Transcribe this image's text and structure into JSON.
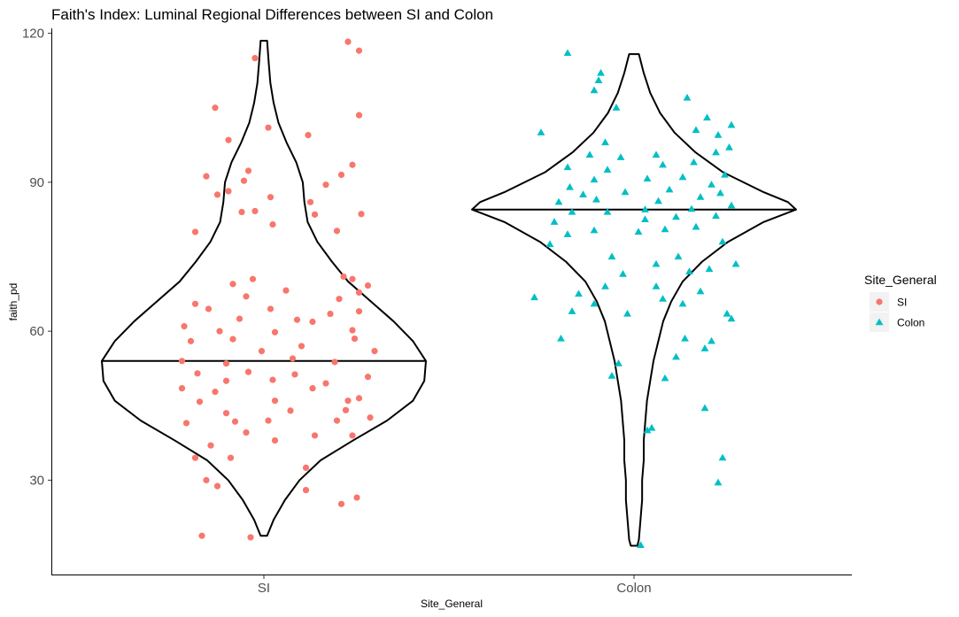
{
  "chart_data": {
    "type": "scatter",
    "subtype": "violin-with-jitter",
    "title": "Faith's Index: Luminal Regional Differences between SI and Colon",
    "xlabel": "Site_General",
    "ylabel": "faith_pd",
    "categories": [
      "SI",
      "Colon"
    ],
    "ylim": [
      11,
      121
    ],
    "yticks": [
      30,
      60,
      90,
      120
    ],
    "grid": false,
    "legend": {
      "title": "Site_General",
      "position": "right",
      "entries": [
        {
          "label": "SI",
          "shape": "circle",
          "color": "#F8766D"
        },
        {
          "label": "Colon",
          "shape": "triangle",
          "color": "#00BFC4"
        }
      ]
    },
    "violins": [
      {
        "category": "SI",
        "median": 54,
        "min": 18.8,
        "max": 118.5,
        "profile": [
          [
            18.8,
            0.02
          ],
          [
            22,
            0.06
          ],
          [
            26,
            0.13
          ],
          [
            30,
            0.22
          ],
          [
            34,
            0.35
          ],
          [
            38,
            0.55
          ],
          [
            42,
            0.76
          ],
          [
            46,
            0.92
          ],
          [
            50,
            0.99
          ],
          [
            54,
            1.0
          ],
          [
            58,
            0.92
          ],
          [
            62,
            0.8
          ],
          [
            66,
            0.66
          ],
          [
            70,
            0.52
          ],
          [
            74,
            0.42
          ],
          [
            78,
            0.33
          ],
          [
            82,
            0.27
          ],
          [
            86,
            0.25
          ],
          [
            90,
            0.24
          ],
          [
            94,
            0.2
          ],
          [
            98,
            0.14
          ],
          [
            102,
            0.09
          ],
          [
            106,
            0.06
          ],
          [
            110,
            0.04
          ],
          [
            114,
            0.03
          ],
          [
            118.5,
            0.02
          ]
        ]
      },
      {
        "category": "Colon",
        "median": 84.5,
        "min": 16.8,
        "max": 115.8,
        "profile": [
          [
            16.8,
            0.02
          ],
          [
            18,
            0.03
          ],
          [
            22,
            0.04
          ],
          [
            26,
            0.05
          ],
          [
            30,
            0.05
          ],
          [
            34,
            0.06
          ],
          [
            38,
            0.06
          ],
          [
            42,
            0.07
          ],
          [
            46,
            0.08
          ],
          [
            50,
            0.1
          ],
          [
            54,
            0.12
          ],
          [
            58,
            0.15
          ],
          [
            62,
            0.18
          ],
          [
            66,
            0.23
          ],
          [
            70,
            0.3
          ],
          [
            74,
            0.42
          ],
          [
            78,
            0.58
          ],
          [
            82,
            0.8
          ],
          [
            84.5,
            1.0
          ],
          [
            86,
            0.95
          ],
          [
            88,
            0.8
          ],
          [
            92,
            0.55
          ],
          [
            96,
            0.38
          ],
          [
            100,
            0.25
          ],
          [
            104,
            0.16
          ],
          [
            108,
            0.1
          ],
          [
            112,
            0.06
          ],
          [
            115.8,
            0.03
          ]
        ]
      }
    ],
    "series": [
      {
        "name": "SI",
        "points": [
          [
            -0.28,
            18.8
          ],
          [
            -0.06,
            18.5
          ],
          [
            0.35,
            25.2
          ],
          [
            0.42,
            26.5
          ],
          [
            0.19,
            28
          ],
          [
            -0.21,
            28.8
          ],
          [
            -0.26,
            30
          ],
          [
            0.19,
            32.5
          ],
          [
            -0.31,
            34.5
          ],
          [
            -0.15,
            34.5
          ],
          [
            -0.24,
            37
          ],
          [
            0.05,
            38
          ],
          [
            0.23,
            39
          ],
          [
            -0.08,
            39.6
          ],
          [
            0.4,
            39
          ],
          [
            -0.35,
            41.5
          ],
          [
            -0.13,
            41.8
          ],
          [
            0.02,
            42
          ],
          [
            0.33,
            42
          ],
          [
            0.48,
            42.6
          ],
          [
            -0.17,
            43.5
          ],
          [
            0.12,
            44
          ],
          [
            0.37,
            44.1
          ],
          [
            -0.29,
            45.8
          ],
          [
            0.05,
            46
          ],
          [
            0.38,
            46
          ],
          [
            0.43,
            46.5
          ],
          [
            -0.22,
            47.8
          ],
          [
            0.22,
            48.5
          ],
          [
            -0.37,
            48.5
          ],
          [
            0.28,
            49.5
          ],
          [
            -0.17,
            50
          ],
          [
            0.04,
            50.2
          ],
          [
            0.47,
            50.8
          ],
          [
            -0.3,
            51.5
          ],
          [
            0.14,
            51.3
          ],
          [
            -0.07,
            51.8
          ],
          [
            -0.17,
            53.5
          ],
          [
            0.32,
            53.8
          ],
          [
            -0.37,
            54
          ],
          [
            0.13,
            54.5
          ],
          [
            -0.01,
            56
          ],
          [
            0.17,
            57
          ],
          [
            -0.33,
            58
          ],
          [
            0.5,
            56
          ],
          [
            0.41,
            58.5
          ],
          [
            -0.14,
            58.4
          ],
          [
            0.05,
            59.8
          ],
          [
            -0.2,
            60
          ],
          [
            0.4,
            60.2
          ],
          [
            -0.36,
            61
          ],
          [
            0.22,
            61.9
          ],
          [
            0.15,
            62.3
          ],
          [
            -0.11,
            62.5
          ],
          [
            0.3,
            63.5
          ],
          [
            0.43,
            64
          ],
          [
            -0.25,
            64.5
          ],
          [
            0.03,
            64.5
          ],
          [
            -0.31,
            65.5
          ],
          [
            0.34,
            66.5
          ],
          [
            -0.08,
            67
          ],
          [
            0.43,
            67.8
          ],
          [
            0.47,
            69.2
          ],
          [
            0.1,
            68.2
          ],
          [
            -0.14,
            69.5
          ],
          [
            0.4,
            70.5
          ],
          [
            -0.05,
            70.5
          ],
          [
            0.36,
            71
          ],
          [
            -0.31,
            80
          ],
          [
            0.33,
            80.2
          ],
          [
            0.04,
            81.5
          ],
          [
            0.23,
            83.5
          ],
          [
            0.44,
            83.6
          ],
          [
            -0.1,
            84
          ],
          [
            -0.04,
            84.2
          ],
          [
            0.21,
            86
          ],
          [
            0.03,
            87
          ],
          [
            -0.21,
            87.5
          ],
          [
            -0.16,
            88.2
          ],
          [
            0.28,
            89.5
          ],
          [
            -0.09,
            90.3
          ],
          [
            -0.26,
            91.2
          ],
          [
            0.35,
            91.5
          ],
          [
            -0.07,
            92.3
          ],
          [
            0.4,
            93.5
          ],
          [
            -0.16,
            98.5
          ],
          [
            0.2,
            99.5
          ],
          [
            0.02,
            101
          ],
          [
            0.43,
            103.5
          ],
          [
            -0.22,
            105
          ],
          [
            -0.04,
            115
          ],
          [
            0.43,
            116.5
          ],
          [
            0.38,
            118.3
          ]
        ]
      },
      {
        "name": "Colon",
        "points": [
          [
            0.03,
            16.9
          ],
          [
            0.38,
            29.5
          ],
          [
            0.4,
            34.5
          ],
          [
            0.32,
            44.5
          ],
          [
            0.06,
            40
          ],
          [
            0.08,
            40.5
          ],
          [
            0.14,
            50.5
          ],
          [
            -0.07,
            53.5
          ],
          [
            -0.1,
            51
          ],
          [
            0.19,
            54.8
          ],
          [
            0.32,
            56.5
          ],
          [
            0.23,
            58.5
          ],
          [
            0.35,
            58
          ],
          [
            -0.33,
            58.5
          ],
          [
            0.44,
            62.5
          ],
          [
            -0.03,
            63.5
          ],
          [
            0.42,
            63.5
          ],
          [
            -0.28,
            64
          ],
          [
            -0.18,
            65.5
          ],
          [
            0.22,
            65.5
          ],
          [
            0.13,
            66.5
          ],
          [
            -0.25,
            67.5
          ],
          [
            -0.45,
            66.8
          ],
          [
            -0.13,
            69
          ],
          [
            0.1,
            69
          ],
          [
            0.3,
            68
          ],
          [
            0.25,
            72
          ],
          [
            -0.05,
            71.5
          ],
          [
            0.34,
            72.5
          ],
          [
            0.46,
            73.5
          ],
          [
            0.1,
            73.5
          ],
          [
            -0.1,
            75
          ],
          [
            0.2,
            75
          ],
          [
            -0.38,
            77.5
          ],
          [
            0.4,
            78
          ],
          [
            -0.3,
            79.5
          ],
          [
            0.02,
            80
          ],
          [
            0.14,
            80.5
          ],
          [
            -0.18,
            80.3
          ],
          [
            0.28,
            81
          ],
          [
            -0.36,
            82
          ],
          [
            0.05,
            82.5
          ],
          [
            0.19,
            83
          ],
          [
            0.37,
            83.2
          ],
          [
            -0.28,
            84
          ],
          [
            -0.12,
            84
          ],
          [
            0.05,
            84.5
          ],
          [
            0.26,
            84.6
          ],
          [
            0.44,
            85.3
          ],
          [
            -0.34,
            86
          ],
          [
            -0.17,
            86.5
          ],
          [
            0.11,
            86.2
          ],
          [
            0.3,
            87
          ],
          [
            0.39,
            87.8
          ],
          [
            -0.23,
            87.5
          ],
          [
            -0.04,
            88
          ],
          [
            0.16,
            88.5
          ],
          [
            -0.29,
            89
          ],
          [
            0.35,
            89.5
          ],
          [
            -0.18,
            90.5
          ],
          [
            0.06,
            90.7
          ],
          [
            0.22,
            91
          ],
          [
            0.41,
            91.5
          ],
          [
            -0.12,
            92.5
          ],
          [
            0.13,
            93.5
          ],
          [
            -0.3,
            93
          ],
          [
            0.27,
            94
          ],
          [
            -0.06,
            95
          ],
          [
            0.1,
            95.5
          ],
          [
            0.37,
            96
          ],
          [
            -0.2,
            95.5
          ],
          [
            0.43,
            97
          ],
          [
            -0.13,
            98
          ],
          [
            0.38,
            99.5
          ],
          [
            -0.42,
            100
          ],
          [
            0.28,
            100.5
          ],
          [
            0.44,
            101.5
          ],
          [
            0.33,
            103
          ],
          [
            -0.08,
            105
          ],
          [
            0.24,
            107
          ],
          [
            -0.18,
            108.5
          ],
          [
            -0.16,
            110.5
          ],
          [
            -0.15,
            112
          ],
          [
            -0.3,
            116
          ]
        ]
      }
    ]
  }
}
